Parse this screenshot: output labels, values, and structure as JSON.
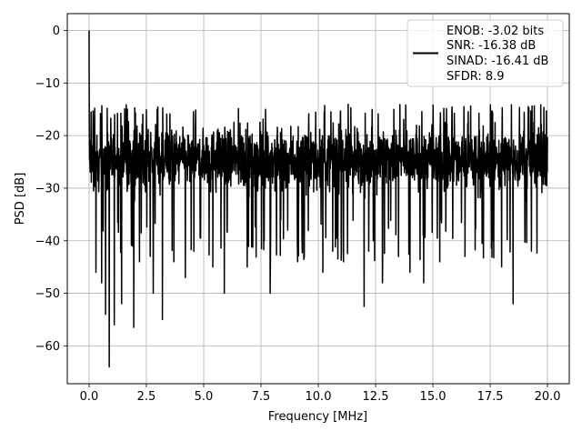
{
  "chart_data": {
    "type": "line",
    "xlabel": "Frequency [MHz]",
    "ylabel": "PSD [dB]",
    "xlim": [
      -0.95,
      20.95
    ],
    "ylim": [
      -67.2,
      3.2
    ],
    "x_ticks": [
      0.0,
      2.5,
      5.0,
      7.5,
      10.0,
      12.5,
      15.0,
      17.5,
      20.0
    ],
    "x_tick_labels": [
      "0.0",
      "2.5",
      "5.0",
      "7.5",
      "10.0",
      "12.5",
      "15.0",
      "17.5",
      "20.0"
    ],
    "y_ticks": [
      0,
      -10,
      -20,
      -30,
      -40,
      -50,
      -60
    ],
    "y_tick_labels": [
      "0",
      "−10",
      "−20",
      "−30",
      "−40",
      "−50",
      "−60"
    ],
    "grid": true,
    "legend_position": "top-right",
    "series": [
      {
        "color": "#000000",
        "x_range": [
          0.0,
          20.0
        ],
        "n_points": 2048,
        "noise_floor_band_db": [
          -33,
          -16
        ],
        "peak": {
          "x": 0.0,
          "y": 0
        },
        "notable_dips": [
          {
            "x": 0.3,
            "y": -46
          },
          {
            "x": 0.55,
            "y": -48
          },
          {
            "x": 0.72,
            "y": -54
          },
          {
            "x": 0.88,
            "y": -64
          },
          {
            "x": 1.1,
            "y": -56
          },
          {
            "x": 1.42,
            "y": -52
          },
          {
            "x": 1.95,
            "y": -56.5
          },
          {
            "x": 2.2,
            "y": -44
          },
          {
            "x": 2.8,
            "y": -50
          },
          {
            "x": 3.2,
            "y": -55
          },
          {
            "x": 3.7,
            "y": -44
          },
          {
            "x": 4.2,
            "y": -47
          },
          {
            "x": 5.4,
            "y": -45
          },
          {
            "x": 5.9,
            "y": -50
          },
          {
            "x": 6.9,
            "y": -45
          },
          {
            "x": 7.9,
            "y": -50
          },
          {
            "x": 9.1,
            "y": -44
          },
          {
            "x": 10.2,
            "y": -46
          },
          {
            "x": 11.1,
            "y": -44
          },
          {
            "x": 12.0,
            "y": -52.5
          },
          {
            "x": 12.2,
            "y": -42
          },
          {
            "x": 12.4,
            "y": -40
          },
          {
            "x": 12.8,
            "y": -48
          },
          {
            "x": 13.5,
            "y": -43
          },
          {
            "x": 14.0,
            "y": -46
          },
          {
            "x": 14.6,
            "y": -48
          },
          {
            "x": 15.3,
            "y": -44
          },
          {
            "x": 16.4,
            "y": -43
          },
          {
            "x": 17.6,
            "y": -40
          },
          {
            "x": 18.0,
            "y": -45
          },
          {
            "x": 18.5,
            "y": -52
          },
          {
            "x": 19.3,
            "y": -42
          }
        ]
      }
    ],
    "legend": {
      "lines": [
        "ENOB: -3.02 bits",
        "SNR: -16.38 dB",
        "SINAD: -16.41 dB",
        "SFDR: 8.9"
      ]
    }
  }
}
